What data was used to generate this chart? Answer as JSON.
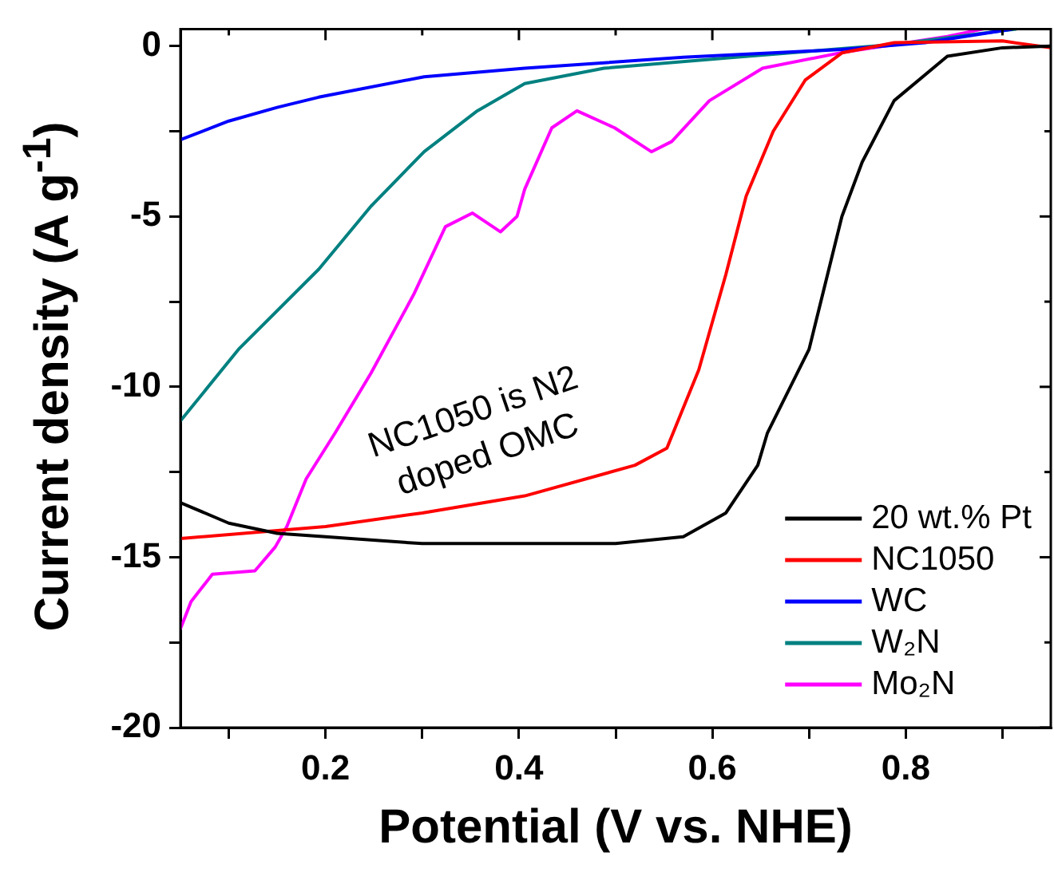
{
  "chart_data": {
    "type": "line",
    "xlabel": "Potential (V vs. NHE)",
    "ylabel": "Current density (A g$^{-1}$)",
    "xlim": [
      0.05,
      0.95
    ],
    "ylim": [
      -20,
      0.5
    ],
    "xticks": [
      {
        "value": 0.1,
        "label": null
      },
      0.2,
      {
        "value": 0.3,
        "label": null
      },
      0.4,
      {
        "value": 0.5,
        "label": null
      },
      0.6,
      {
        "value": 0.7,
        "label": null
      },
      0.8,
      {
        "value": 0.9,
        "label": null
      }
    ],
    "yticks": [
      -20,
      {
        "value": -17.5,
        "label": null
      },
      -15,
      {
        "value": -12.5,
        "label": null
      },
      -10,
      {
        "value": -7.5,
        "label": null
      },
      -5,
      {
        "value": -2.5,
        "label": null
      },
      0
    ],
    "grid": false,
    "legend": "bottom right",
    "marker": "none",
    "line_style": "solid",
    "annotations": [
      "NC1050 is N2 doped OMC"
    ],
    "series": [
      {
        "name": "20 wt.% Pt",
        "color": "#000000",
        "x": [
          0.05,
          0.1,
          0.15,
          0.2,
          0.3,
          0.406,
          0.5,
          0.57,
          0.614,
          0.647,
          0.657,
          0.7,
          0.734,
          0.755,
          0.788,
          0.843,
          0.9,
          0.95
        ],
        "values": [
          -13.4,
          -14.0,
          -14.3,
          -14.4,
          -14.6,
          -14.6,
          -14.6,
          -14.4,
          -13.7,
          -12.3,
          -11.35,
          -8.9,
          -5.0,
          -3.4,
          -1.6,
          -0.3,
          -0.05,
          0
        ]
      },
      {
        "name": "NC1050",
        "color": "#ff0000",
        "x": [
          0.05,
          0.2,
          0.3,
          0.406,
          0.52,
          0.553,
          0.586,
          0.614,
          0.635,
          0.663,
          0.696,
          0.734,
          0.788,
          0.9,
          0.95
        ],
        "values": [
          -14.45,
          -14.1,
          -13.7,
          -13.2,
          -12.3,
          -11.8,
          -9.5,
          -6.7,
          -4.4,
          -2.5,
          -1.0,
          -0.2,
          0.1,
          0.15,
          -0.05
        ]
      },
      {
        "name": "WC",
        "color": "#0000ff",
        "x": [
          0.05,
          0.1,
          0.15,
          0.193,
          0.302,
          0.406,
          0.57,
          0.734,
          0.82,
          0.91
        ],
        "values": [
          -2.75,
          -2.2,
          -1.8,
          -1.5,
          -0.9,
          -0.65,
          -0.33,
          -0.1,
          0.1,
          0.5
        ]
      },
      {
        "name": "W₂N",
        "color": "#008080",
        "x": [
          0.05,
          0.11,
          0.193,
          0.247,
          0.302,
          0.357,
          0.406,
          0.488,
          0.624,
          0.788,
          0.914
        ],
        "values": [
          -11.0,
          -8.9,
          -6.55,
          -4.7,
          -3.1,
          -1.9,
          -1.1,
          -0.65,
          -0.33,
          0.05,
          0.5
        ]
      },
      {
        "name": "Mo₂N",
        "color": "#ff00ff",
        "x": [
          0.05,
          0.061,
          0.083,
          0.127,
          0.148,
          0.16,
          0.18,
          0.21,
          0.247,
          0.291,
          0.324,
          0.352,
          0.381,
          0.398,
          0.406,
          0.434,
          0.46,
          0.499,
          0.537,
          0.558,
          0.597,
          0.652,
          0.734,
          0.843,
          0.88
        ],
        "values": [
          -17.1,
          -16.3,
          -15.5,
          -15.4,
          -14.7,
          -14.1,
          -12.7,
          -11.35,
          -9.6,
          -7.3,
          -5.3,
          -4.9,
          -5.45,
          -5.0,
          -4.2,
          -2.4,
          -1.9,
          -2.4,
          -3.1,
          -2.8,
          -1.6,
          -0.65,
          -0.19,
          0.28,
          0.5
        ]
      }
    ]
  }
}
